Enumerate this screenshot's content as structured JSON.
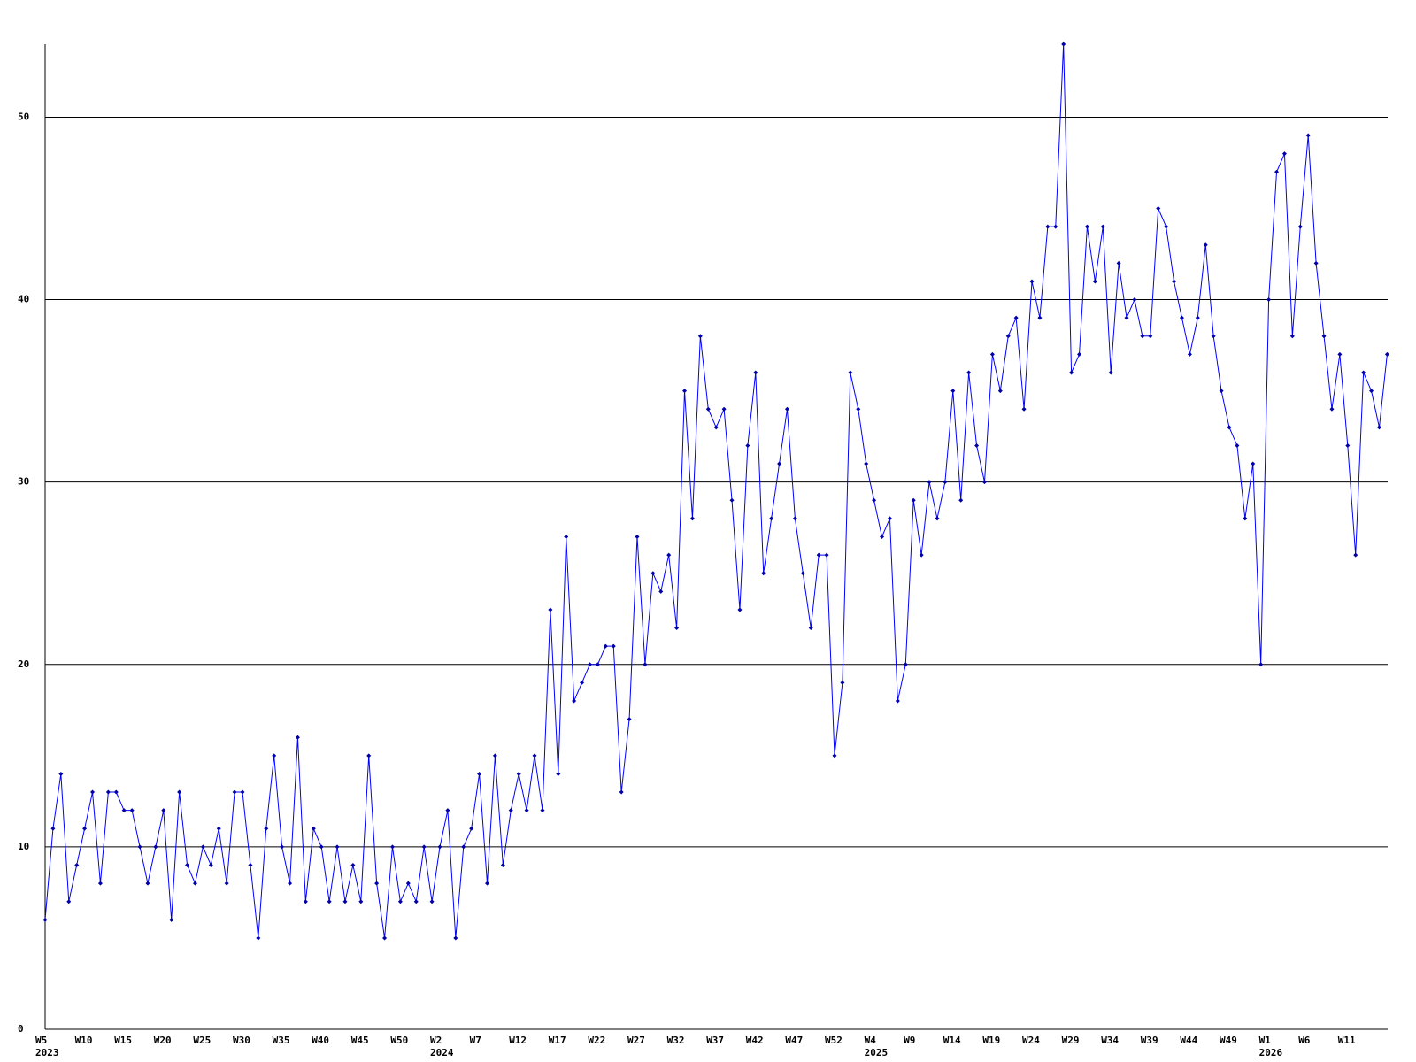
{
  "chart_data": {
    "type": "line",
    "categories": [
      "W5",
      null,
      null,
      null,
      null,
      "W10",
      null,
      null,
      null,
      null,
      "W15",
      null,
      null,
      null,
      null,
      "W20",
      null,
      null,
      null,
      null,
      "W25",
      null,
      null,
      null,
      null,
      "W30",
      null,
      null,
      null,
      null,
      "W35",
      null,
      null,
      null,
      null,
      "W40",
      null,
      null,
      null,
      null,
      "W45",
      null,
      null,
      null,
      null,
      "W50",
      null,
      null,
      null,
      null,
      "W2",
      null,
      null,
      null,
      null,
      "W7",
      null,
      null,
      null,
      null,
      "W12",
      null,
      null,
      null,
      null,
      "W17",
      null,
      null,
      null,
      null,
      "W22",
      null,
      null,
      null,
      null,
      "W27",
      null,
      null,
      null,
      null,
      "W32",
      null,
      null,
      null,
      null,
      "W37",
      null,
      null,
      null,
      null,
      "W42",
      null,
      null,
      null,
      null,
      "W47",
      null,
      null,
      null,
      null,
      "W52",
      null,
      null,
      null,
      null,
      "W4",
      null,
      null,
      null,
      null,
      "W9",
      null,
      null,
      null,
      null,
      "W14",
      null,
      null,
      null,
      null,
      "W19",
      null,
      null,
      null,
      null,
      "W24",
      null,
      null,
      null,
      null,
      "W29",
      null,
      null,
      null,
      null,
      "W34",
      null,
      null,
      null,
      null,
      "W39",
      null,
      null,
      null,
      null,
      "W44",
      null,
      null,
      null,
      null,
      "W49",
      null,
      null,
      null,
      null,
      "W1",
      null,
      null,
      null,
      null,
      "W6",
      null,
      null,
      null,
      null,
      "W11",
      null,
      null,
      null,
      null,
      null
    ],
    "x_year_labels": [
      "2023",
      null,
      null,
      null,
      null,
      null,
      null,
      null,
      null,
      null,
      null,
      null,
      null,
      null,
      null,
      null,
      null,
      null,
      null,
      null,
      null,
      null,
      null,
      null,
      null,
      null,
      null,
      null,
      null,
      null,
      null,
      null,
      null,
      null,
      null,
      null,
      null,
      null,
      null,
      null,
      null,
      null,
      null,
      null,
      null,
      null,
      null,
      null,
      null,
      null,
      "2024",
      null,
      null,
      null,
      null,
      null,
      null,
      null,
      null,
      null,
      null,
      null,
      null,
      null,
      null,
      null,
      null,
      null,
      null,
      null,
      null,
      null,
      null,
      null,
      null,
      null,
      null,
      null,
      null,
      null,
      null,
      null,
      null,
      null,
      null,
      null,
      null,
      null,
      null,
      null,
      null,
      null,
      null,
      null,
      null,
      null,
      null,
      null,
      null,
      null,
      null,
      null,
      null,
      null,
      null,
      "2025",
      null,
      null,
      null,
      null,
      null,
      null,
      null,
      null,
      null,
      null,
      null,
      null,
      null,
      null,
      null,
      null,
      null,
      null,
      null,
      null,
      null,
      null,
      null,
      null,
      null,
      null,
      null,
      null,
      null,
      null,
      null,
      null,
      null,
      null,
      null,
      null,
      null,
      null,
      null,
      null,
      null,
      null,
      null,
      null,
      null,
      null,
      null,
      null,
      null,
      "2026",
      null,
      null,
      null,
      null,
      null,
      null,
      null,
      null,
      null,
      null,
      null,
      null,
      null,
      null,
      null
    ],
    "series": [
      {
        "color": "#0000ff",
        "values": [
          6,
          11,
          14,
          7,
          9,
          11,
          13,
          8,
          13,
          13,
          12,
          12,
          10,
          8,
          10,
          12,
          6,
          13,
          9,
          8,
          10,
          9,
          11,
          8,
          13,
          13,
          9,
          5,
          11,
          15,
          10,
          8,
          16,
          7,
          11,
          10,
          7,
          10,
          7,
          9,
          7,
          15,
          8,
          5,
          10,
          7,
          8,
          7,
          10,
          7,
          10,
          12,
          5,
          10,
          11,
          14,
          8,
          15,
          9,
          12,
          14,
          12,
          15,
          12,
          23,
          14,
          27,
          18,
          19,
          20,
          20,
          21,
          21,
          13,
          17,
          27,
          20,
          25,
          24,
          26,
          22,
          35,
          28,
          38,
          34,
          33,
          34,
          29,
          23,
          32,
          36,
          25,
          28,
          31,
          34,
          28,
          25,
          22,
          26,
          26,
          15,
          19,
          36,
          34,
          31,
          29,
          27,
          28,
          18,
          20,
          29,
          26,
          30,
          28,
          30,
          35,
          29,
          36,
          32,
          30,
          37,
          35,
          38,
          39,
          34,
          41,
          39,
          44,
          44,
          54,
          36,
          37,
          44,
          41,
          44,
          36,
          42,
          39,
          40,
          38,
          38,
          45,
          44,
          41,
          39,
          37,
          39,
          43,
          38,
          35,
          33,
          32,
          28,
          31,
          20,
          40,
          47,
          48,
          38,
          44,
          49,
          42,
          38,
          34,
          37,
          32,
          26,
          36,
          35,
          33,
          37
        ]
      }
    ],
    "ylim": [
      0,
      54
    ],
    "yticks": [
      0,
      10,
      20,
      30,
      40,
      50
    ],
    "grid": true
  }
}
